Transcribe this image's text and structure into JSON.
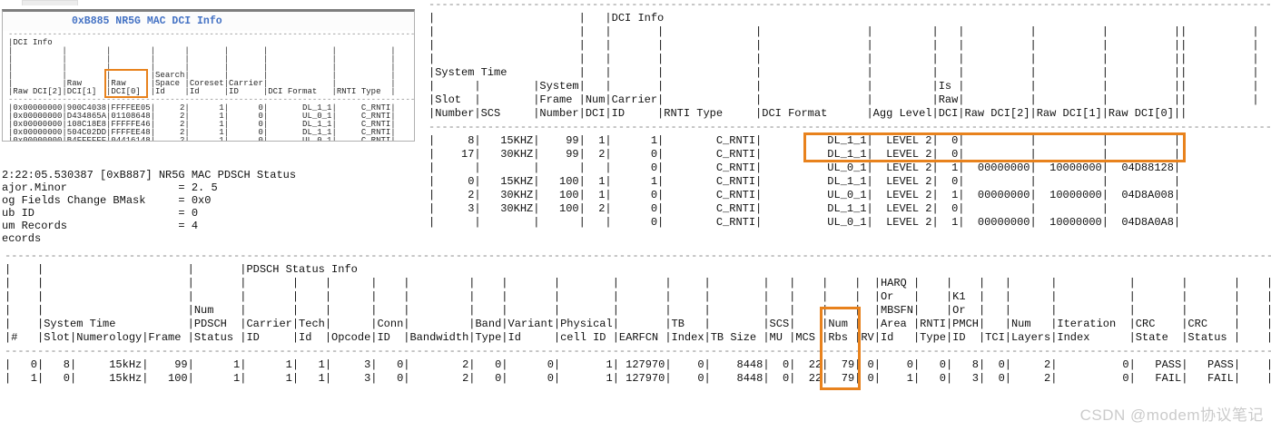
{
  "annotation_color": "#e8821d",
  "left_window": {
    "title": "0xB885 NR5G MAC DCI Info",
    "lines": [
      "------------------------------------------------------------------------------------------",
      "|DCI Info",
      "|          |        |        |      |       |       |             |           |",
      "|          |        |        |      |       |       |             |           |",
      "|          |        |        |      |       |       |             |           |",
      "|          |        |        |Search|       |       |             |           |",
      "|          |Raw     |Raw     |Space |Coreset|Carrier|             |           |",
      "|Raw DCI[2]|DCI[1]  |DCI[0]  |Id    |Id     |ID     |DCI Format   |RNTI Type  |",
      "------------------------------------------------------------------------------------------",
      "|0x00000000|900C4038|FFFFEE05|     2|      1|      0|       DL_1_1|     C_RNTI|",
      "|0x00000000|D434865A|01108648|     2|      1|      0|       UL_0_1|     C_RNTI|",
      "|0x00000000|108C18E8|FFFFFE46|     2|      1|      0|       DL_1_1|     C_RNTI|",
      "|0x00000000|504C02DD|FFFFEE48|     2|      1|      0|       DL_1_1|     C_RNTI|",
      "|0x00000000|B4FFFFFF|04416148|     2|      1|      0|       UL_0_1|     C_RNTI|"
    ]
  },
  "left_text": {
    "lines": [
      "2:22:05.530387 [0xB887] NR5G MAC PDSCH Status",
      "ajor.Minor                 = 2. 5",
      "og Fields Change BMask     = 0x0",
      "ub ID                      = 0",
      "um Records                 = 4",
      "ecords"
    ]
  },
  "dci_table": {
    "lines": [
      "----------------------------------------------------------------------------------------------------------------------------------",
      "|                      |   |DCI Info",
      "|                      |   |       |              |                |         |   |          |          |          ||          |",
      "|                      |   |       |              |                |         |   |          |          |          ||          |",
      "|                      |   |       |              |                |         |   |          |          |          ||          |",
      "|System Time           |   |       |              |                |         |   |          |          |          ||          |",
      "|      |        |System|   |       |              |                |         |Is |          |          |          ||          |",
      "|Slot  |        |Frame |Num|Carrier|              |                |         |Raw|          |          |          ||          |",
      "|Number|SCS     |Number|DCI|ID     |RNTI Type     |DCI Format      |Agg Level|DCI|Raw DCI[2]|Raw DCI[1]|Raw DCI[0]||",
      "----------------------------------------------------------------------------------------------------------------------------------",
      "|     8|   15KHZ|    99|  1|      1|        C_RNTI|          DL_1_1|  LEVEL 2|  0|          |          |          |",
      "|    17|   30KHZ|    99|  2|      0|        C_RNTI|          DL_1_1|  LEVEL 2|  0|          |          |          |",
      "|      |        |      |   |      0|        C_RNTI|          UL_0_1|  LEVEL 2|  1|  00000000|  10000000|  04D88128|",
      "|     0|   15KHZ|   100|  1|      1|        C_RNTI|          DL_1_1|  LEVEL 2|  0|          |          |          |",
      "|     2|   30KHZ|   100|  1|      0|        C_RNTI|          UL_0_1|  LEVEL 2|  1|  00000000|  10000000|  04D8A008|",
      "|     3|   30KHZ|   100|  2|      0|        C_RNTI|          DL_1_1|  LEVEL 2|  0|          |          |          |",
      "|      |        |      |   |      0|        C_RNTI|          UL_0_1|  LEVEL 2|  1|  00000000|  10000000|  04D8A0A8|"
    ]
  },
  "pdsch_table": {
    "lines": [
      "--------------------------------------------------------------------------------------------------------------------------------------------------------------------------------------------------------",
      "|    |                      |       |PDSCH Status Info",
      "|    |                      |       |       |    |      |    |         |    |       |        |       |     |        |   |    |    |  |HARQ |    |    |   |      |           |       |       |    |",
      "|    |                      |       |       |    |      |    |         |    |       |        |       |     |        |   |    |    |  |Or   |    |K1  |   |      |           |       |       |    |",
      "|    |                      |Num    |       |    |      |    |         |    |       |        |       |     |        |   |    |    |  |MBSFN|    |Or  |   |      |           |       |       |    |",
      "|    |System Time           |PDSCH  |Carrier|Tech|      |Conn|         |Band|Variant|Physical|       |TB   |        |SCS|    |Num |  |Area |RNTI|PMCH|   |Num   |Iteration  |CRC    |CRC    |    |",
      "|#   |Slot|Numerology|Frame |Status |ID     |Id  |Opcode|ID  |Bandwidth|Type|Id     |cell ID |EARFCN |Index|TB Size |MU |MCS |Rbs |RV|Id   |Type|ID  |TCI|Layers|Index      |State  |Status |    |",
      "--------------------------------------------------------------------------------------------------------------------------------------------------------------------------------------------------------",
      "|   0|   8|     15kHz|    99|      1|      1|   1|     3|   0|        2|   0|      0|       1| 127970|    0|    8448|  0|  22|  79| 0|    0|   0|   8|  0|     2|          0|   PASS|   PASS|    |",
      "|   1|   0|     15kHz|   100|      1|      1|   1|     3|   0|        2|   0|      0|       1| 127970|    0|    8448|  0|  22|  79| 0|    1|   0|   3|  0|     2|          0|   FAIL|   FAIL|    |"
    ]
  },
  "watermark": "CSDN @modem协议笔记"
}
